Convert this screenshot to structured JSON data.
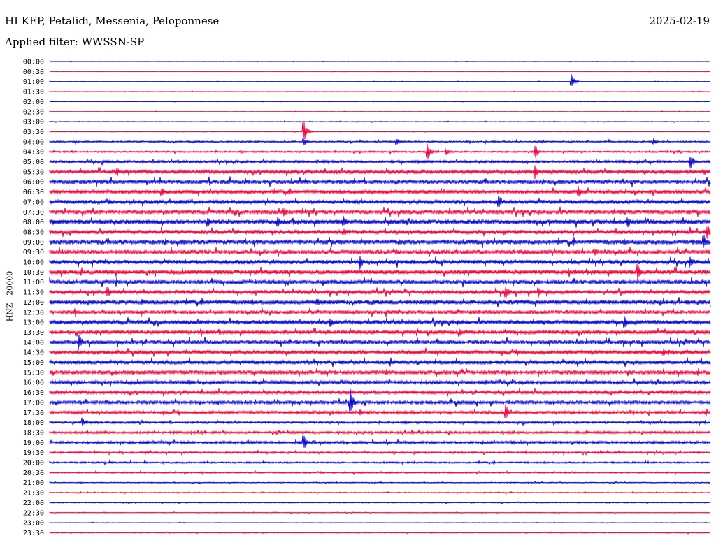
{
  "header": {
    "station": "HI KEP, Petalidi, Messenia, Peloponnese",
    "date": "2025-02-19",
    "filter": "Applied filter: WWSSN-SP"
  },
  "chart_data": {
    "type": "line",
    "title": "HI KEP, Petalidi, Messenia, Peloponnese",
    "ylabel": "HNZ - 20000",
    "xlabel": "",
    "grid": false,
    "colors": [
      "#0000cc",
      "#e8003a"
    ],
    "row_labels": [
      "00:00",
      "00:30",
      "01:00",
      "01:30",
      "02:00",
      "02:30",
      "03:00",
      "03:30",
      "04:00",
      "04:30",
      "05:00",
      "05:30",
      "06:00",
      "06:30",
      "07:00",
      "07:30",
      "08:00",
      "08:30",
      "09:00",
      "09:30",
      "10:00",
      "10:30",
      "11:00",
      "11:30",
      "12:00",
      "12:30",
      "13:00",
      "13:30",
      "14:00",
      "14:30",
      "15:00",
      "15:30",
      "16:00",
      "16:30",
      "17:00",
      "17:30",
      "18:00",
      "18:30",
      "19:00",
      "19:30",
      "20:00",
      "20:30",
      "21:00",
      "21:30",
      "22:00",
      "22:30",
      "23:00",
      "23:30"
    ],
    "noise_level": [
      0.2,
      0.2,
      0.3,
      0.3,
      0.2,
      0.3,
      0.4,
      0.3,
      1.0,
      1.0,
      1.6,
      2.2,
      2.6,
      2.2,
      2.4,
      2.6,
      2.8,
      2.6,
      3.0,
      2.6,
      2.6,
      2.6,
      2.6,
      2.4,
      2.6,
      2.2,
      2.4,
      2.2,
      2.6,
      2.2,
      2.4,
      2.4,
      2.2,
      2.0,
      2.0,
      1.8,
      1.4,
      1.4,
      1.6,
      1.2,
      1.0,
      0.9,
      0.6,
      0.6,
      0.5,
      0.4,
      0.3,
      0.5
    ],
    "events": [
      {
        "row": 2,
        "at": 0.79,
        "amp": 11
      },
      {
        "row": 7,
        "at": 0.385,
        "amp": 16
      },
      {
        "row": 8,
        "at": 0.385,
        "amp": 6
      },
      {
        "row": 8,
        "at": 0.525,
        "amp": 6
      },
      {
        "row": 8,
        "at": 0.915,
        "amp": 5
      },
      {
        "row": 9,
        "at": 0.572,
        "amp": 14
      },
      {
        "row": 9,
        "at": 0.6,
        "amp": 7
      },
      {
        "row": 9,
        "at": 0.735,
        "amp": 10
      },
      {
        "row": 10,
        "at": 0.97,
        "amp": 12
      },
      {
        "row": 11,
        "at": 0.102,
        "amp": 7
      },
      {
        "row": 11,
        "at": 0.735,
        "amp": 12
      },
      {
        "row": 11,
        "at": 0.99,
        "amp": 6
      },
      {
        "row": 13,
        "at": 0.17,
        "amp": 8
      },
      {
        "row": 13,
        "at": 0.8,
        "amp": 9
      },
      {
        "row": 14,
        "at": 0.68,
        "amp": 12
      },
      {
        "row": 15,
        "at": 0.355,
        "amp": 9
      },
      {
        "row": 16,
        "at": 0.24,
        "amp": 7
      },
      {
        "row": 16,
        "at": 0.345,
        "amp": 10
      },
      {
        "row": 16,
        "at": 0.445,
        "amp": 10
      },
      {
        "row": 16,
        "at": 0.875,
        "amp": 9
      },
      {
        "row": 17,
        "at": 0.445,
        "amp": 7
      },
      {
        "row": 17,
        "at": 0.995,
        "amp": 12
      },
      {
        "row": 18,
        "at": 0.53,
        "amp": 6
      },
      {
        "row": 18,
        "at": 0.99,
        "amp": 12
      },
      {
        "row": 19,
        "at": 0.825,
        "amp": 8
      },
      {
        "row": 20,
        "at": 0.47,
        "amp": 12
      },
      {
        "row": 20,
        "at": 0.97,
        "amp": 9
      },
      {
        "row": 21,
        "at": 0.89,
        "amp": 14
      },
      {
        "row": 23,
        "at": 0.087,
        "amp": 11
      },
      {
        "row": 23,
        "at": 0.69,
        "amp": 13
      },
      {
        "row": 23,
        "at": 0.74,
        "amp": 10
      },
      {
        "row": 24,
        "at": 0.14,
        "amp": 6
      },
      {
        "row": 24,
        "at": 0.405,
        "amp": 6
      },
      {
        "row": 26,
        "at": 0.425,
        "amp": 9
      },
      {
        "row": 26,
        "at": 0.87,
        "amp": 11
      },
      {
        "row": 27,
        "at": 0.62,
        "amp": 7
      },
      {
        "row": 28,
        "at": 0.045,
        "amp": 12
      },
      {
        "row": 29,
        "at": 0.93,
        "amp": 5
      },
      {
        "row": 31,
        "at": 0.51,
        "amp": 5
      },
      {
        "row": 32,
        "at": 0.21,
        "amp": 6
      },
      {
        "row": 34,
        "at": 0.455,
        "amp": 22
      },
      {
        "row": 35,
        "at": 0.47,
        "amp": 5
      },
      {
        "row": 35,
        "at": 0.69,
        "amp": 13
      },
      {
        "row": 36,
        "at": 0.05,
        "amp": 7
      },
      {
        "row": 38,
        "at": 0.385,
        "amp": 11
      },
      {
        "row": 38,
        "at": 0.7,
        "amp": 4
      }
    ]
  }
}
